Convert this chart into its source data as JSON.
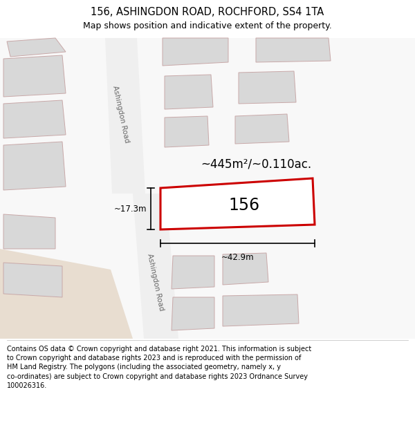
{
  "title": "156, ASHINGDON ROAD, ROCHFORD, SS4 1TA",
  "subtitle": "Map shows position and indicative extent of the property.",
  "footer": "Contains OS data © Crown copyright and database right 2021. This information is subject\nto Crown copyright and database rights 2023 and is reproduced with the permission of\nHM Land Registry. The polygons (including the associated geometry, namely x, y\nco-ordinates) are subject to Crown copyright and database rights 2023 Ordnance Survey\n100026316.",
  "area_label": "~445m²/~0.110ac.",
  "width_label": "~42.9m",
  "height_label": "~17.3m",
  "house_number": "156",
  "bg_color": "#ffffff",
  "building_fill": "#d8d8d8",
  "building_edge": "#c8a8a8",
  "highlight_fill": "#ffffff",
  "highlight_edge": "#cc0000",
  "road_fill": "#efefef",
  "beige_fill": "#e8ddd0",
  "text_color": "#333333",
  "road_text_color": "#666666",
  "title_fontsize": 10.5,
  "subtitle_fontsize": 9,
  "footer_fontsize": 7,
  "area_fontsize": 12,
  "house_fontsize": 17,
  "dim_fontsize": 8.5,
  "road_fontsize": 7.5
}
